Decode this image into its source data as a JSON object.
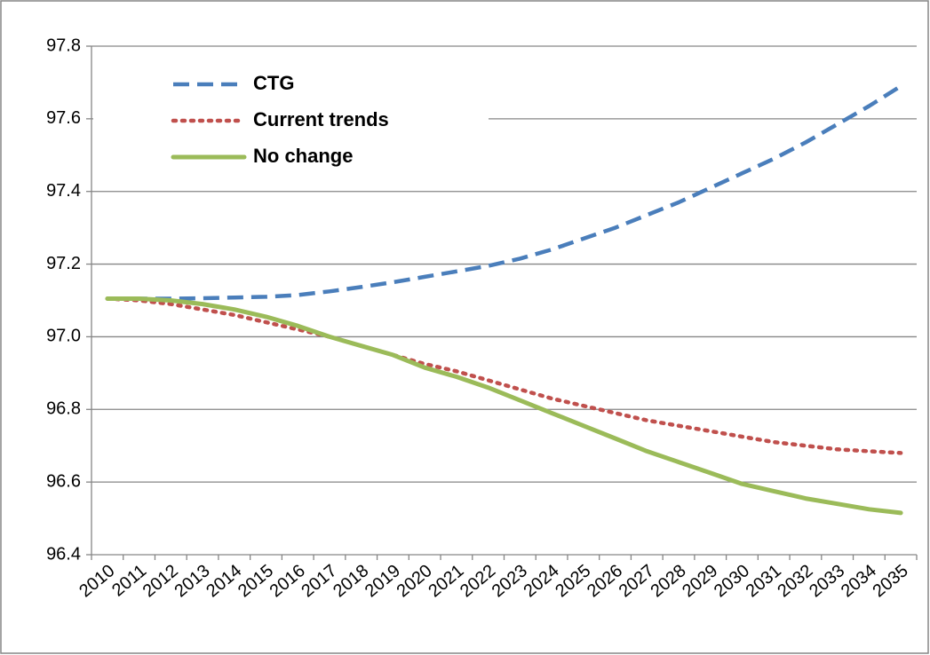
{
  "chart_data": {
    "type": "line",
    "categories": [
      "2010",
      "2011",
      "2012",
      "2013",
      "2014",
      "2015",
      "2016",
      "2017",
      "2018",
      "2019",
      "2020",
      "2021",
      "2022",
      "2023",
      "2024",
      "2025",
      "2026",
      "2027",
      "2028",
      "2029",
      "2030",
      "2031",
      "2032",
      "2033",
      "2034",
      "2035"
    ],
    "series": [
      {
        "name": "CTG",
        "color": "#4a7ebb",
        "dash": "dashed",
        "values": [
          97.105,
          97.105,
          97.105,
          97.106,
          97.108,
          97.11,
          97.115,
          97.125,
          97.137,
          97.15,
          97.165,
          97.18,
          97.195,
          97.215,
          97.24,
          97.27,
          97.3,
          97.335,
          97.37,
          97.41,
          97.45,
          97.49,
          97.535,
          97.585,
          97.635,
          97.69
        ]
      },
      {
        "name": "Current trends",
        "color": "#c0504d",
        "dash": "dotted",
        "values": [
          97.105,
          97.1,
          97.09,
          97.075,
          97.06,
          97.04,
          97.02,
          97.0,
          96.975,
          96.95,
          96.925,
          96.905,
          96.88,
          96.855,
          96.83,
          96.81,
          96.79,
          96.77,
          96.755,
          96.74,
          96.725,
          96.71,
          96.7,
          96.69,
          96.685,
          96.68
        ]
      },
      {
        "name": "No change",
        "color": "#9bbb59",
        "dash": "solid",
        "values": [
          97.105,
          97.105,
          97.1,
          97.09,
          97.075,
          97.055,
          97.03,
          97.0,
          96.975,
          96.95,
          96.915,
          96.89,
          96.86,
          96.825,
          96.79,
          96.755,
          96.72,
          96.685,
          96.655,
          96.625,
          96.595,
          96.575,
          96.555,
          96.54,
          96.525,
          96.515
        ]
      }
    ],
    "ylim": [
      96.4,
      97.8
    ],
    "yticks": [
      96.4,
      96.6,
      96.8,
      {
        "value": 97,
        "label": "97.0"
      },
      97.2,
      97.4,
      97.6,
      97.8
    ],
    "grid": true,
    "legend": "upper left"
  }
}
